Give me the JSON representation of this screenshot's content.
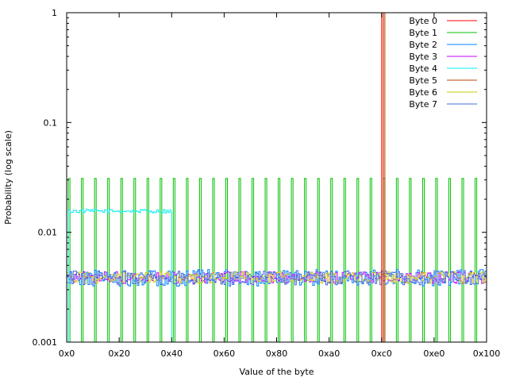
{
  "chart_data": {
    "type": "line",
    "title": "",
    "xlabel": "Value of the byte",
    "ylabel": "Probability (log scale)",
    "y_scale": "log",
    "ylim": [
      0.001,
      1
    ],
    "xlim": [
      0,
      256
    ],
    "x_ticks": [
      {
        "value": 0,
        "label": "0x0"
      },
      {
        "value": 32,
        "label": "0x20"
      },
      {
        "value": 64,
        "label": "0x40"
      },
      {
        "value": 96,
        "label": "0x60"
      },
      {
        "value": 128,
        "label": "0x80"
      },
      {
        "value": 160,
        "label": "0xa0"
      },
      {
        "value": 192,
        "label": "0xc0"
      },
      {
        "value": 224,
        "label": "0xe0"
      },
      {
        "value": 256,
        "label": "0x100"
      }
    ],
    "y_ticks": [
      {
        "value": 0.001,
        "label": "0.001"
      },
      {
        "value": 0.01,
        "label": "0.01"
      },
      {
        "value": 0.1,
        "label": "0.1"
      },
      {
        "value": 1,
        "label": "1"
      }
    ],
    "grid": false,
    "legend_position": "top-right",
    "plot_style": "histogram steps",
    "series": [
      {
        "name": "Byte 0",
        "color": "#ff0000",
        "description_values": "probability 1 at x = 192 (0xc0), 0 elsewhere",
        "spike_x": 192,
        "spike_y": 1
      },
      {
        "name": "Byte 1",
        "color": "#00c000",
        "description_values": "about 0.031 at 32 evenly spaced byte values (every 8th value from 0x1 to 0xf9), 0 elsewhere",
        "spike_start": 1,
        "spike_step": 8,
        "spike_count": 32,
        "spike_y": 0.031
      },
      {
        "name": "Byte 2",
        "color": "#0080ff",
        "level": 0.0039
      },
      {
        "name": "Byte 3",
        "color": "#c000ff",
        "level": 0.0039
      },
      {
        "name": "Byte 4",
        "color": "#00eeee",
        "level": 0.0156,
        "x_range": [
          1,
          64
        ],
        "description_values": "about 0.0156 for x in 0x1-0x40, 0 elsewhere"
      },
      {
        "name": "Byte 5",
        "color": "#c04000",
        "spike_x": 193,
        "spike_y": 1
      },
      {
        "name": "Byte 6",
        "color": "#c8c800",
        "level": 0.0039
      },
      {
        "name": "Byte 7",
        "color": "#4169e1",
        "level": 0.0039
      }
    ]
  }
}
